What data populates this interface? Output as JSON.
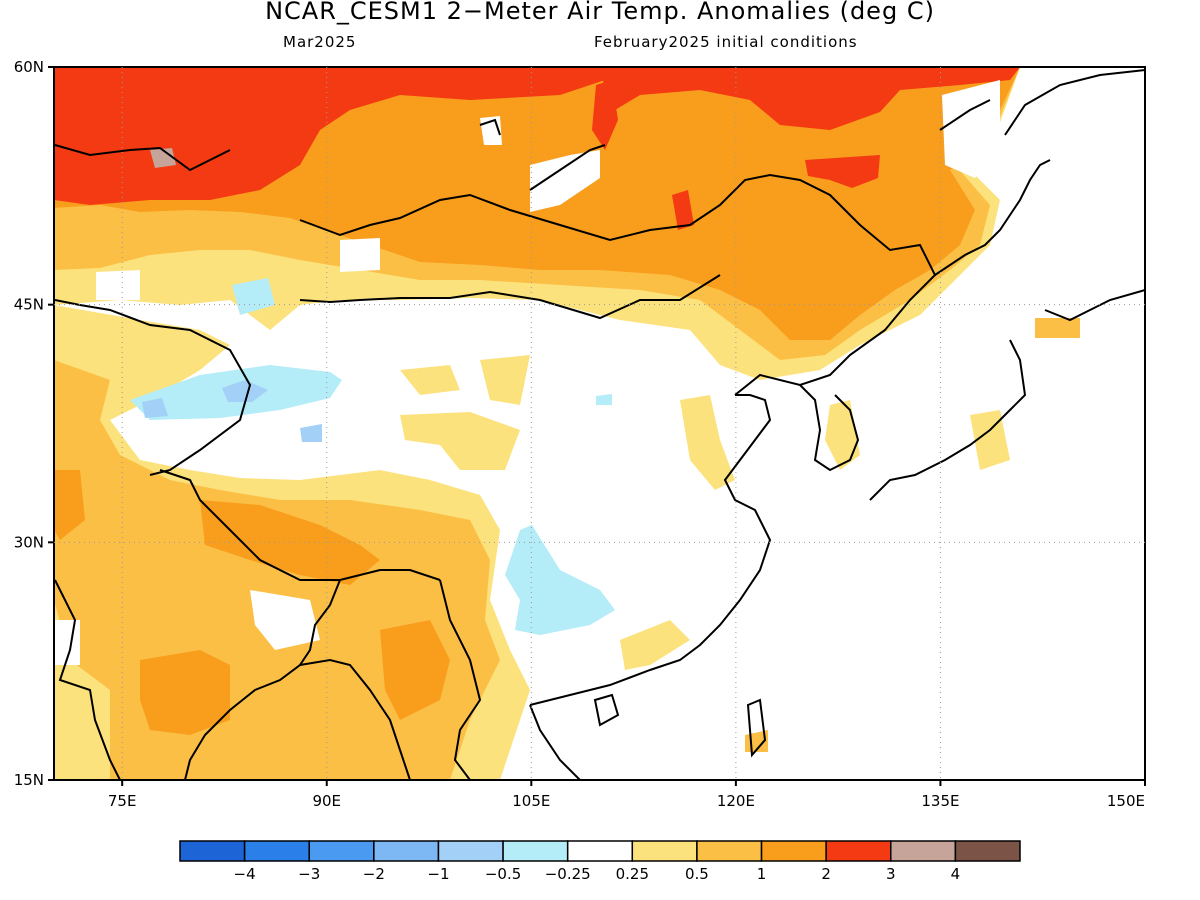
{
  "title": "NCAR_CESM1 2−Meter Air Temp. Anomalies (deg C)",
  "subtitle_left": "Mar2025",
  "subtitle_right": "February2025 initial conditions",
  "map": {
    "lat_ticks": [
      {
        "label": "60N",
        "value": 60
      },
      {
        "label": "45N",
        "value": 45
      },
      {
        "label": "30N",
        "value": 30
      },
      {
        "label": "15N",
        "value": 15
      }
    ],
    "lon_ticks": [
      {
        "label": "75E",
        "value": 75
      },
      {
        "label": "90E",
        "value": 90
      },
      {
        "label": "105E",
        "value": 105
      },
      {
        "label": "120E",
        "value": 120
      },
      {
        "label": "135E",
        "value": 135
      },
      {
        "label": "150E",
        "value": 150
      }
    ],
    "extent": {
      "lon": [
        70,
        150
      ],
      "lat": [
        15,
        60
      ]
    },
    "grid_lines": "dotted"
  },
  "colorbar": {
    "colors": [
      "#1d64d6",
      "#2a7fe8",
      "#4b9af2",
      "#7db8f5",
      "#a3d0f7",
      "#b4ecf8",
      "#ffffff",
      "#fce27c",
      "#fcbf45",
      "#f89e1c",
      "#f43a12",
      "#c6a49a",
      "#7b5447"
    ],
    "labels": [
      "−4",
      "−3",
      "−2",
      "−1",
      "−0.5",
      "−0.25",
      "0.25",
      "0.5",
      "1",
      "2",
      "3",
      "4"
    ]
  }
}
